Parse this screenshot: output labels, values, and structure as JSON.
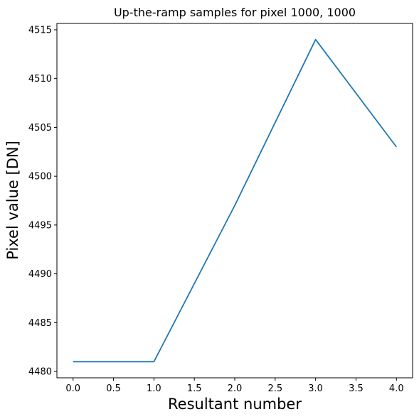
{
  "chart_data": {
    "type": "line",
    "title": "Up-the-ramp samples for pixel 1000, 1000",
    "xlabel": "Resultant number",
    "ylabel": "Pixel value [DN]",
    "xlim": [
      -0.2,
      4.2
    ],
    "ylim": [
      4479.35,
      4515.65
    ],
    "x_ticks": [
      0.0,
      0.5,
      1.0,
      1.5,
      2.0,
      2.5,
      3.0,
      3.5,
      4.0
    ],
    "x_tick_labels": [
      "0.0",
      "0.5",
      "1.0",
      "1.5",
      "2.0",
      "2.5",
      "3.0",
      "3.5",
      "4.0"
    ],
    "y_ticks": [
      4480,
      4485,
      4490,
      4495,
      4500,
      4505,
      4510,
      4515
    ],
    "y_tick_labels": [
      "4480",
      "4485",
      "4490",
      "4495",
      "4500",
      "4505",
      "4510",
      "4515"
    ],
    "grid": false,
    "series": [
      {
        "x": [
          0,
          1,
          2,
          3,
          4
        ],
        "values": [
          4481,
          4481,
          4497,
          4514,
          4503
        ],
        "color": "#1f77b4"
      }
    ]
  }
}
